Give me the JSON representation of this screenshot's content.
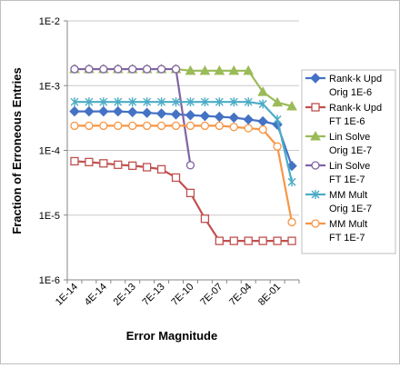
{
  "chart_data": {
    "type": "line",
    "title": "",
    "xlabel": "Error Magnitude",
    "ylabel": "Fraction of Erroneous Entries",
    "y_scale": "log",
    "ylim": [
      1e-06,
      0.01
    ],
    "y_ticks": [
      "1E-2",
      "1E-3",
      "1E-4",
      "1E-5",
      "1E-6"
    ],
    "x_tick_labels": [
      "1E-14",
      "4E-14",
      "2E-13",
      "7E-13",
      "7E-10",
      "7E-07",
      "7E-04",
      "8E-01"
    ],
    "grid": "horizontal",
    "legend_position": "right",
    "series": [
      {
        "name": "Rank-k Upd Orig 1E-6",
        "legend_lines": [
          "Rank-k Upd",
          "Orig 1E-6"
        ],
        "color": "#4472C4",
        "marker": "diamond",
        "values": [
          0.0004,
          0.0004,
          0.0004,
          0.0004,
          0.00039,
          0.00038,
          0.00037,
          0.00036,
          0.00035,
          0.00034,
          0.00033,
          0.00032,
          0.0003,
          0.00028,
          0.00025,
          5.76e-05
        ]
      },
      {
        "name": "Rank-k Upd FT 1E-6",
        "legend_lines": [
          "Rank-k Upd",
          "FT 1E-6"
        ],
        "color": "#C0504D",
        "marker": "square-open",
        "values": [
          6.8e-05,
          6.6e-05,
          6.3e-05,
          6e-05,
          5.8e-05,
          5.5e-05,
          5.1e-05,
          3.8e-05,
          2.2e-05,
          8.8e-06,
          4e-06,
          4e-06,
          4e-06,
          4e-06,
          4e-06,
          4e-06
        ]
      },
      {
        "name": "Lin Solve Orig 1E-7",
        "legend_lines": [
          "Lin Solve",
          "Orig 1E-7"
        ],
        "color": "#9BBB59",
        "marker": "triangle",
        "values": [
          0.0018,
          0.0018,
          0.0018,
          0.0018,
          0.0018,
          0.0018,
          0.0018,
          0.0018,
          0.0017,
          0.0017,
          0.0017,
          0.0017,
          0.0017,
          0.0008,
          0.00055,
          0.00048
        ]
      },
      {
        "name": "Lin Solve FT 1E-7",
        "legend_lines": [
          "Lin Solve",
          "FT 1E-7"
        ],
        "color": "#8064A2",
        "marker": "circle-open",
        "values": [
          0.0018,
          0.0018,
          0.0018,
          0.0018,
          0.0018,
          0.0018,
          0.0018,
          0.0018,
          5.9e-05,
          null,
          null,
          null,
          null,
          null,
          null,
          null
        ]
      },
      {
        "name": "MM Mult Orig 1E-7",
        "legend_lines": [
          "MM Mult",
          "Orig 1E-7"
        ],
        "color": "#4BACC6",
        "marker": "asterisk",
        "values": [
          0.00056,
          0.00056,
          0.00056,
          0.00056,
          0.00056,
          0.00056,
          0.00056,
          0.00056,
          0.00056,
          0.00056,
          0.00056,
          0.00056,
          0.00056,
          0.00052,
          0.0003,
          3.25e-05
        ]
      },
      {
        "name": "MM Mult FT 1E-7",
        "legend_lines": [
          "MM Mult",
          "FT 1E-7"
        ],
        "color": "#F79646",
        "marker": "circle-open",
        "values": [
          0.00024,
          0.00024,
          0.00024,
          0.00024,
          0.00024,
          0.00024,
          0.00024,
          0.00024,
          0.00024,
          0.00024,
          0.00024,
          0.00023,
          0.00022,
          0.00021,
          0.000115,
          7.8e-06
        ]
      }
    ]
  }
}
